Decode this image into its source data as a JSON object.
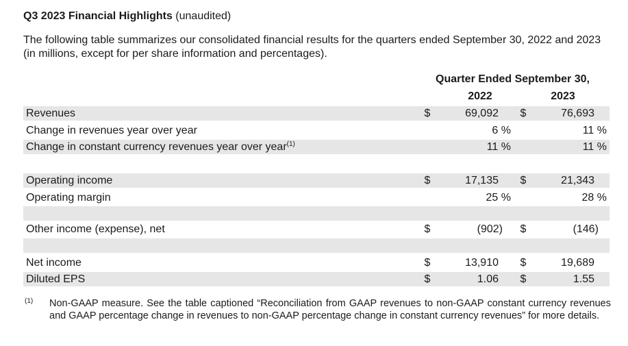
{
  "title": {
    "bold": "Q3 2023 Financial Highlights",
    "normal": " (unaudited)"
  },
  "intro": "The following table summarizes our consolidated financial results for the quarters ended September 30, 2022 and 2023 (in millions, except for per share information and percentages).",
  "table": {
    "period_header": "Quarter Ended September 30,",
    "years": [
      "2022",
      "2023"
    ],
    "rows": {
      "revenues": {
        "label": "Revenues",
        "cur1": "$",
        "v1": "69,092",
        "cur2": "$",
        "v2": "76,693"
      },
      "change_revenues": {
        "label": "Change in revenues year over year",
        "v1": "6 %",
        "v2": "11 %"
      },
      "change_cc": {
        "label": "Change in constant currency revenues year over year",
        "sup": "(1)",
        "v1": "11 %",
        "v2": "11 %"
      },
      "operating_income": {
        "label": "Operating income",
        "cur1": "$",
        "v1": "17,135",
        "cur2": "$",
        "v2": "21,343"
      },
      "operating_margin": {
        "label": "Operating margin",
        "v1": "25 %",
        "v2": "28 %"
      },
      "other_income": {
        "label": "Other income (expense), net",
        "cur1": "$",
        "v1": "(902)",
        "cur2": "$",
        "v2": "(146)"
      },
      "net_income": {
        "label": "Net income",
        "cur1": "$",
        "v1": "13,910",
        "cur2": "$",
        "v2": "19,689"
      },
      "diluted_eps": {
        "label": "Diluted EPS",
        "cur1": "$",
        "v1": "1.06",
        "cur2": "$",
        "v2": "1.55"
      }
    }
  },
  "footnote": {
    "mark": "(1)",
    "text": "Non-GAAP measure. See the table captioned “Reconciliation from GAAP revenues to non-GAAP constant currency revenues and GAAP percentage change in revenues to non-GAAP percentage change in constant currency revenues” for more details."
  }
}
